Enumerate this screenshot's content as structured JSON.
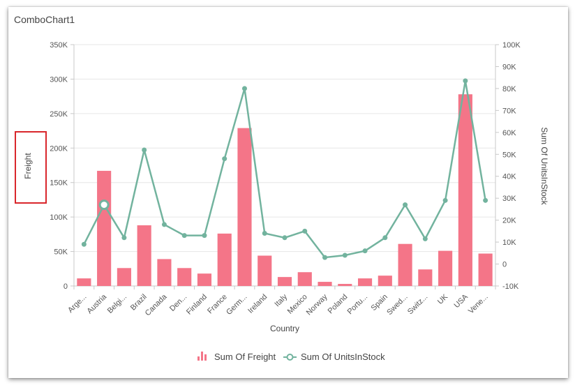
{
  "widget": {
    "title": "ComboChart1"
  },
  "colors": {
    "bar": "#f47588",
    "line": "#72b39e",
    "highlight_box": "#d9262b"
  },
  "chart_data": {
    "type": "bar",
    "title": "",
    "xlabel": "Country",
    "ylabel": "Freight",
    "y2label": "Sum Of UnitsInStock",
    "categories": [
      "Arge...",
      "Austria",
      "Belgi...",
      "Brazil",
      "Canada",
      "Den...",
      "Finland",
      "France",
      "Germ...",
      "Ireland",
      "Italy",
      "Mexico",
      "Norway",
      "Poland",
      "Portu...",
      "Spain",
      "Swed...",
      "Switz...",
      "UK",
      "USA",
      "Vene..."
    ],
    "ylim": [
      0,
      350000
    ],
    "yticks": [
      "0",
      "50K",
      "100K",
      "150K",
      "200K",
      "250K",
      "300K",
      "350K"
    ],
    "y2lim": [
      -10000,
      100000
    ],
    "y2ticks": [
      "-10K",
      "0",
      "10K",
      "20K",
      "30K",
      "40K",
      "50K",
      "60K",
      "70K",
      "80K",
      "90K",
      "100K"
    ],
    "grid": true,
    "legend_position": "bottom",
    "series": [
      {
        "name": "Sum Of Freight",
        "type": "bar",
        "axis": "left",
        "values": [
          11000,
          167000,
          26000,
          88000,
          39000,
          26000,
          18000,
          76000,
          229000,
          44000,
          13000,
          20000,
          6000,
          3000,
          11000,
          15000,
          61000,
          24000,
          51000,
          278000,
          47000
        ]
      },
      {
        "name": "Sum Of UnitsInStock",
        "type": "line",
        "axis": "right",
        "values": [
          9000,
          27000,
          12000,
          52000,
          18000,
          13000,
          13000,
          48000,
          80000,
          14000,
          12000,
          15000,
          3000,
          4000,
          6000,
          12000,
          27000,
          11500,
          29000,
          83500,
          29000
        ],
        "highlighted_index": 1
      }
    ]
  }
}
